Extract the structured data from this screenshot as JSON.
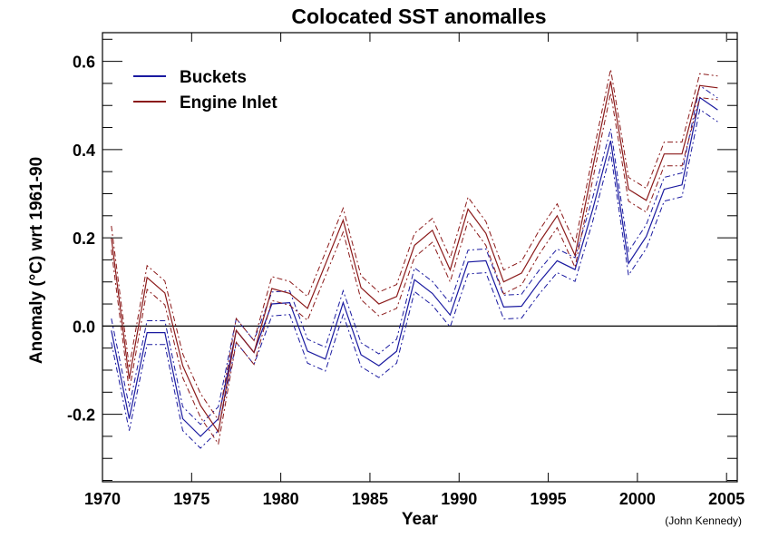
{
  "chart_data": {
    "type": "line",
    "title": "Colocated SST anomalles",
    "xlabel": "Year",
    "ylabel": "Anomaly (°C) wrt 1961-90",
    "credit": "(John Kennedy)",
    "xlim": [
      1970,
      2005.6
    ],
    "ylim": [
      -0.353,
      0.665
    ],
    "x_ticks": [
      1970,
      1975,
      1980,
      1985,
      1990,
      1995,
      2000,
      2005
    ],
    "x_tick_labels": [
      "1970",
      "1975",
      "1980",
      "1985",
      "1990",
      "1995",
      "2000",
      "2005"
    ],
    "y_ticks": [
      -0.2,
      0.0,
      0.2,
      0.4,
      0.6
    ],
    "y_tick_labels": [
      "-0.2",
      "0.0",
      "0.2",
      "0.4",
      "0.6"
    ],
    "y_minor_step": 0.05,
    "x_minor_step": 1,
    "zero_line": true,
    "grid": false,
    "legend_position": "top-left",
    "band_halfwidth": 0.027,
    "x": [
      1970.5,
      1971.5,
      1972.5,
      1973.5,
      1974.5,
      1975.5,
      1976.5,
      1977.5,
      1978.5,
      1979.5,
      1980.5,
      1981.5,
      1982.5,
      1983.5,
      1984.5,
      1985.5,
      1986.5,
      1987.5,
      1988.5,
      1989.5,
      1990.5,
      1991.5,
      1992.5,
      1993.5,
      1994.5,
      1995.5,
      1996.5,
      1997.5,
      1998.5,
      1999.5,
      2000.5,
      2001.5,
      2002.5,
      2003.5,
      2004.5
    ],
    "series": [
      {
        "name": "Buckets",
        "color": "#1a1aa0",
        "values": [
          -0.01,
          -0.21,
          -0.015,
          -0.015,
          -0.21,
          -0.25,
          -0.21,
          -0.01,
          -0.06,
          0.05,
          0.053,
          -0.057,
          -0.075,
          0.053,
          -0.065,
          -0.09,
          -0.057,
          0.105,
          0.074,
          0.025,
          0.145,
          0.148,
          0.043,
          0.045,
          0.1,
          0.148,
          0.128,
          0.265,
          0.42,
          0.142,
          0.203,
          0.31,
          0.32,
          0.518,
          0.49
        ]
      },
      {
        "name": "Engine Inlet",
        "color": "#8b1a1a",
        "values": [
          0.2,
          -0.12,
          0.11,
          0.075,
          -0.09,
          -0.18,
          -0.24,
          -0.01,
          -0.06,
          0.085,
          0.074,
          0.04,
          0.14,
          0.24,
          0.087,
          0.05,
          0.067,
          0.183,
          0.217,
          0.127,
          0.265,
          0.21,
          0.1,
          0.12,
          0.19,
          0.25,
          0.16,
          0.36,
          0.555,
          0.31,
          0.285,
          0.39,
          0.39,
          0.545,
          0.54
        ]
      }
    ]
  }
}
